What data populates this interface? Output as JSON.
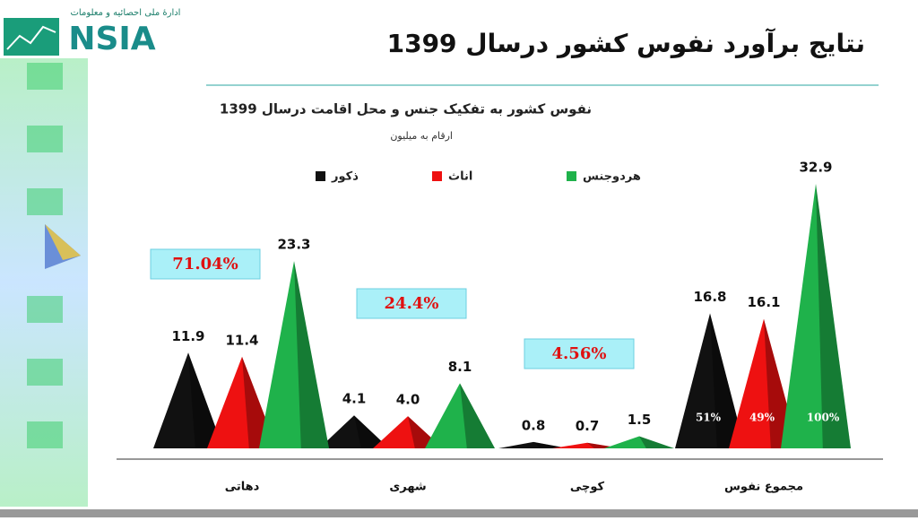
{
  "logo": {
    "name": "NSIA",
    "caption": "ادارهٔ ملی احصائیه و معلومات"
  },
  "slide_title": "نتایج برآورد نفوس کشور درسال 1399",
  "chart_data": {
    "type": "pyramid-bar",
    "title": "نفوس کشور به تفکیک جنس و محل اقامت درسال 1399",
    "subtitle": "ارقام به میلیون",
    "categories": [
      "دهاتی",
      "شهری",
      "کوچی",
      "مجموع نفوس"
    ],
    "series": [
      {
        "name": "ذکور",
        "color": "#111111",
        "values": [
          11.9,
          4.1,
          0.8,
          16.8
        ],
        "value_labels": [
          "11.9",
          "4.1",
          "0.8",
          "16.8"
        ]
      },
      {
        "name": "اناث",
        "color": "#ee1111",
        "values": [
          11.4,
          4.0,
          0.7,
          16.1
        ],
        "value_labels": [
          "11.4",
          "4.0",
          "0.7",
          "16.1"
        ]
      },
      {
        "name": "هردوجنس",
        "color": "#1fb24b",
        "values": [
          23.3,
          8.1,
          1.5,
          32.9
        ],
        "value_labels": [
          "23.3",
          "8.1",
          "1.5",
          "32.9"
        ]
      }
    ],
    "annotations": [
      "71.04%",
      "24.4%",
      "4.56%"
    ],
    "inner_labels": [
      "51%",
      "49%",
      "100%"
    ]
  }
}
